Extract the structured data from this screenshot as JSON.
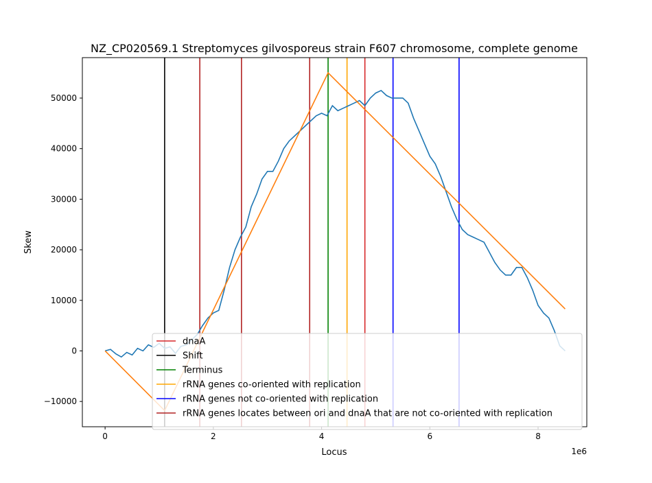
{
  "chart_data": {
    "type": "line",
    "title": "NZ_CP020569.1 Streptomyces gilvosporeus strain F607 chromosome, complete genome",
    "xlabel": "Locus",
    "ylabel": "Skew",
    "x_offset_label": "1e6",
    "xlim": [
      -0.42,
      8.9
    ],
    "ylim": [
      -15000,
      58000
    ],
    "xticks": [
      0,
      2,
      4,
      6,
      8
    ],
    "xtick_labels": [
      "0",
      "2",
      "4",
      "6",
      "8"
    ],
    "yticks": [
      -10000,
      0,
      10000,
      20000,
      30000,
      40000,
      50000
    ],
    "ytick_labels": [
      "−10000",
      "0",
      "10000",
      "20000",
      "30000",
      "40000",
      "50000"
    ],
    "legend_position": "lower-right",
    "skew_series": {
      "color": "#1f77b4",
      "x": [
        0,
        0.1,
        0.2,
        0.3,
        0.4,
        0.5,
        0.6,
        0.7,
        0.8,
        0.9,
        1.0,
        1.1,
        1.2,
        1.3,
        1.4,
        1.5,
        1.6,
        1.7,
        1.8,
        1.9,
        2.0,
        2.1,
        2.2,
        2.3,
        2.4,
        2.5,
        2.6,
        2.7,
        2.8,
        2.9,
        3.0,
        3.1,
        3.2,
        3.3,
        3.4,
        3.5,
        3.6,
        3.7,
        3.8,
        3.9,
        4.0,
        4.1,
        4.2,
        4.3,
        4.4,
        4.5,
        4.6,
        4.7,
        4.8,
        4.9,
        5.0,
        5.1,
        5.2,
        5.3,
        5.4,
        5.5,
        5.6,
        5.7,
        5.8,
        5.9,
        6.0,
        6.1,
        6.2,
        6.3,
        6.4,
        6.5,
        6.6,
        6.7,
        6.8,
        6.9,
        7.0,
        7.1,
        7.2,
        7.3,
        7.4,
        7.5,
        7.6,
        7.7,
        7.8,
        7.9,
        8.0,
        8.1,
        8.2,
        8.3,
        8.4,
        8.5
      ],
      "values": [
        0,
        300,
        -600,
        -1200,
        -300,
        -800,
        500,
        0,
        1200,
        700,
        1500,
        500,
        800,
        -500,
        900,
        1200,
        2200,
        3200,
        5000,
        6500,
        7500,
        8000,
        12000,
        16500,
        20000,
        22500,
        24500,
        28500,
        31000,
        34000,
        35500,
        35500,
        37500,
        40000,
        41500,
        42500,
        43500,
        44500,
        45500,
        46500,
        47000,
        46500,
        48500,
        47500,
        48000,
        48500,
        49000,
        49500,
        48500,
        50000,
        51000,
        51500,
        50500,
        50000,
        50000,
        50000,
        49000,
        46000,
        43500,
        41000,
        38500,
        37000,
        34500,
        31500,
        28500,
        26000,
        24000,
        23000,
        22500,
        22000,
        21500,
        19500,
        17500,
        16000,
        15000,
        15000,
        16500,
        16500,
        14500,
        12000,
        9000,
        7500,
        6500,
        4000,
        1000,
        0
      ]
    },
    "fit_series": {
      "color": "#ff7f0e",
      "x": [
        0,
        1.1,
        4.12,
        8.5
      ],
      "values": [
        0,
        -11800,
        55000,
        8300
      ]
    },
    "vlines": [
      {
        "x": 1.1,
        "color": "#000000",
        "key": "shift"
      },
      {
        "x": 1.75,
        "color": "#b22222",
        "key": "rrna_between"
      },
      {
        "x": 2.52,
        "color": "#b22222",
        "key": "rrna_between"
      },
      {
        "x": 3.78,
        "color": "#b22222",
        "key": "rrna_between"
      },
      {
        "x": 4.12,
        "color": "#008000",
        "key": "terminus"
      },
      {
        "x": 4.47,
        "color": "#ffa500",
        "key": "rrna_co"
      },
      {
        "x": 4.8,
        "color": "#d62728",
        "key": "dnaa"
      },
      {
        "x": 5.32,
        "color": "#0000ff",
        "key": "rrna_not"
      },
      {
        "x": 6.54,
        "color": "#0000ff",
        "key": "rrna_not"
      }
    ],
    "legend": [
      {
        "label": "dnaA",
        "color": "#d62728"
      },
      {
        "label": "Shift",
        "color": "#000000"
      },
      {
        "label": "Terminus",
        "color": "#008000"
      },
      {
        "label": "rRNA genes co-oriented with replication",
        "color": "#ffa500"
      },
      {
        "label": "rRNA genes not co-oriented with replication",
        "color": "#0000ff"
      },
      {
        "label": "rRNA genes locates between ori and dnaA that are not co-oriented with replication",
        "color": "#b22222"
      }
    ]
  }
}
